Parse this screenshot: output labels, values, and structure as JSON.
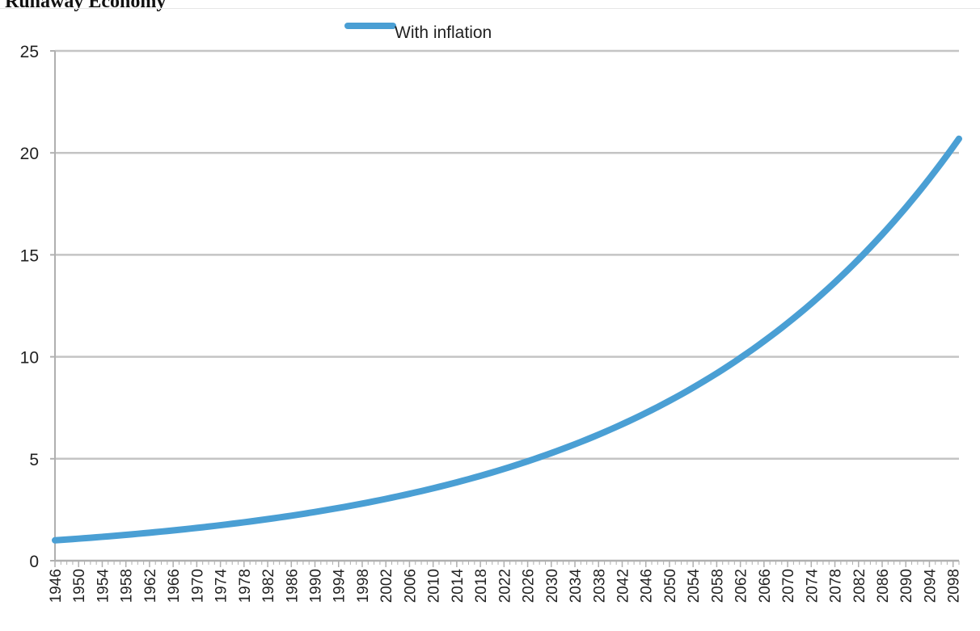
{
  "page": {
    "title": "Runaway Economy"
  },
  "colors": {
    "line": "#4a9fd4",
    "grid": "#c4c4c4",
    "axis": "#b0b0b0",
    "text": "#222222"
  },
  "chart_data": {
    "type": "line",
    "title": "",
    "xlabel": "",
    "ylabel": "",
    "ylim": [
      0,
      25
    ],
    "yticks": [
      "0",
      "5",
      "10",
      "15",
      "20",
      "25"
    ],
    "grid": true,
    "legend": {
      "placement": "top-center",
      "entries": [
        "With inflation"
      ]
    },
    "x_start": 1946,
    "x_end": 2099,
    "x_tick_labels": [
      "1946",
      "1950",
      "1954",
      "1958",
      "1962",
      "1966",
      "1970",
      "1974",
      "1978",
      "1982",
      "1986",
      "1990",
      "1994",
      "1998",
      "2002",
      "2006",
      "2010",
      "2014",
      "2018",
      "2022",
      "2026",
      "2030",
      "2034",
      "2038",
      "2042",
      "2046",
      "2050",
      "2054",
      "2058",
      "2062",
      "2066",
      "2070",
      "2074",
      "2078",
      "2082",
      "2086",
      "2090",
      "2094",
      "2098"
    ],
    "series": [
      {
        "name": "With inflation",
        "growth_rate": 0.02,
        "start_value": 1.0,
        "points": [
          [
            1946,
            1.0
          ],
          [
            1958,
            1.27
          ],
          [
            1970,
            1.61
          ],
          [
            1982,
            2.04
          ],
          [
            1994,
            2.59
          ],
          [
            2006,
            3.28
          ],
          [
            2018,
            4.16
          ],
          [
            2030,
            5.28
          ],
          [
            2042,
            6.7
          ],
          [
            2054,
            8.5
          ],
          [
            2066,
            10.78
          ],
          [
            2078,
            13.68
          ],
          [
            2090,
            17.35
          ],
          [
            2099,
            20.7
          ]
        ]
      }
    ]
  }
}
